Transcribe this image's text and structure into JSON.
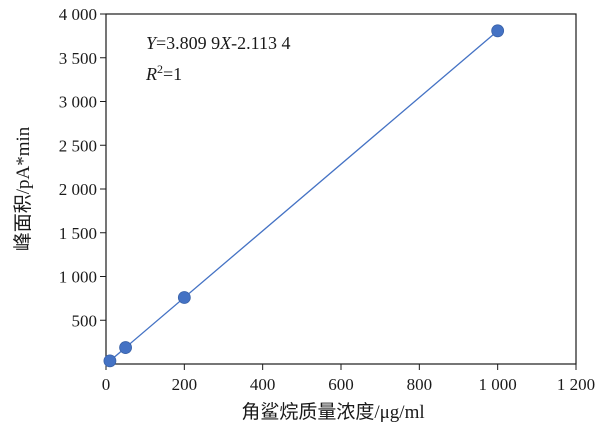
{
  "chart_data": {
    "type": "scatter",
    "xlabel": "角鲨烷质量浓度/μg/ml",
    "ylabel": "峰面积/pA*min",
    "xlim": [
      0,
      1200
    ],
    "ylim": [
      0,
      4000
    ],
    "x_ticks": [
      0,
      200,
      400,
      600,
      800,
      1000,
      1200
    ],
    "x_tick_labels": [
      "0",
      "200",
      "400",
      "600",
      "800",
      "1 000",
      "1 200"
    ],
    "y_ticks": [
      500,
      1000,
      1500,
      2000,
      2500,
      3000,
      3500,
      4000
    ],
    "y_tick_labels": [
      "500",
      "1 000",
      "1 500",
      "2 000",
      "2 500",
      "3 000",
      "3 500",
      "4 000"
    ],
    "grid": false,
    "series": [
      {
        "marker": "circle",
        "color": "#4472c4",
        "points": [
          {
            "x": 10,
            "y": 36
          },
          {
            "x": 50,
            "y": 188
          },
          {
            "x": 200,
            "y": 760
          },
          {
            "x": 1000,
            "y": 3808
          }
        ]
      }
    ],
    "trendline": {
      "type": "linear",
      "slope": 3.8099,
      "intercept": -2.1134,
      "x_range": [
        10,
        1000
      ],
      "color": "#4472c4"
    },
    "annotations": {
      "equation": {
        "y_var": "Y",
        "eq_part1": "=3.809 9",
        "x_var": "X",
        "eq_part2": "-2.113 4"
      },
      "r2": {
        "var": "R",
        "sup": "2",
        "value": "=1"
      }
    }
  }
}
